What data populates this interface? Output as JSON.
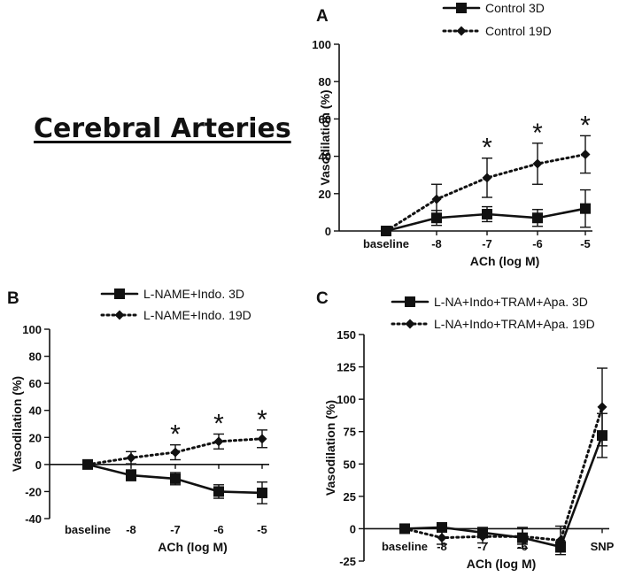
{
  "title": "Cerebral Arteries",
  "chart_data": [
    {
      "panel": "A",
      "type": "line",
      "xlabel": "ACh (log M)",
      "ylabel": "Vasodilation (%)",
      "categories": [
        "baseline",
        "-8",
        "-7",
        "-6",
        "-5"
      ],
      "yticks": [
        0,
        20,
        40,
        60,
        80,
        100
      ],
      "ylim": [
        0,
        100
      ],
      "series": [
        {
          "name": "Control 3D",
          "style": "solid",
          "marker": "square",
          "values": [
            0,
            7,
            9,
            7,
            12
          ],
          "errors": [
            0,
            4,
            4,
            4.5,
            10
          ]
        },
        {
          "name": "Control 19D",
          "style": "dotted",
          "marker": "diamond",
          "values": [
            0,
            17,
            28.5,
            36,
            41
          ],
          "errors": [
            0,
            8,
            10.5,
            11,
            10
          ]
        }
      ],
      "significance": [
        {
          "category": "-7",
          "label": "*"
        },
        {
          "category": "-6",
          "label": "*"
        },
        {
          "category": "-5",
          "label": "*"
        }
      ]
    },
    {
      "panel": "B",
      "type": "line",
      "xlabel": "ACh (log M)",
      "ylabel": "Vasodilation (%)",
      "categories": [
        "baseline",
        "-8",
        "-7",
        "-6",
        "-5"
      ],
      "yticks": [
        -40,
        -20,
        0,
        20,
        40,
        60,
        80,
        100
      ],
      "ylim": [
        -40,
        100
      ],
      "series": [
        {
          "name": "L-NAME+Indo. 3D",
          "style": "solid",
          "marker": "square",
          "values": [
            0,
            -8,
            -10.5,
            -20,
            -21
          ],
          "errors": [
            0,
            4,
            4.5,
            5,
            8
          ]
        },
        {
          "name": "L-NAME+Indo. 19D",
          "style": "dotted",
          "marker": "diamond",
          "values": [
            0,
            5,
            9,
            17,
            19
          ],
          "errors": [
            0,
            4.5,
            5.5,
            5.5,
            6.5
          ]
        }
      ],
      "significance": [
        {
          "category": "-7",
          "label": "*"
        },
        {
          "category": "-6",
          "label": "*"
        },
        {
          "category": "-5",
          "label": "*"
        }
      ]
    },
    {
      "panel": "C",
      "type": "line",
      "xlabel": "ACh (log M)",
      "ylabel": "Vasodilation (%)",
      "categories": [
        "baseline",
        "-8",
        "-7",
        "-6",
        "-5",
        "SNP"
      ],
      "yticks": [
        -25,
        0,
        25,
        50,
        75,
        100,
        125,
        150
      ],
      "ylim": [
        -25,
        150
      ],
      "series": [
        {
          "name": "L-NA+Indo+TRAM+Apa. 3D",
          "style": "solid",
          "marker": "square",
          "values": [
            0,
            1,
            -3,
            -7,
            -14,
            72
          ],
          "errors": [
            0,
            3,
            4,
            8,
            4,
            17
          ]
        },
        {
          "name": "L-NA+Indo+TRAM+Apa. 19D",
          "style": "dotted",
          "marker": "diamond",
          "values": [
            0,
            -7,
            -6,
            -6,
            -9,
            94
          ],
          "errors": [
            0,
            5,
            5,
            6,
            11,
            30
          ]
        }
      ],
      "significance": []
    }
  ]
}
